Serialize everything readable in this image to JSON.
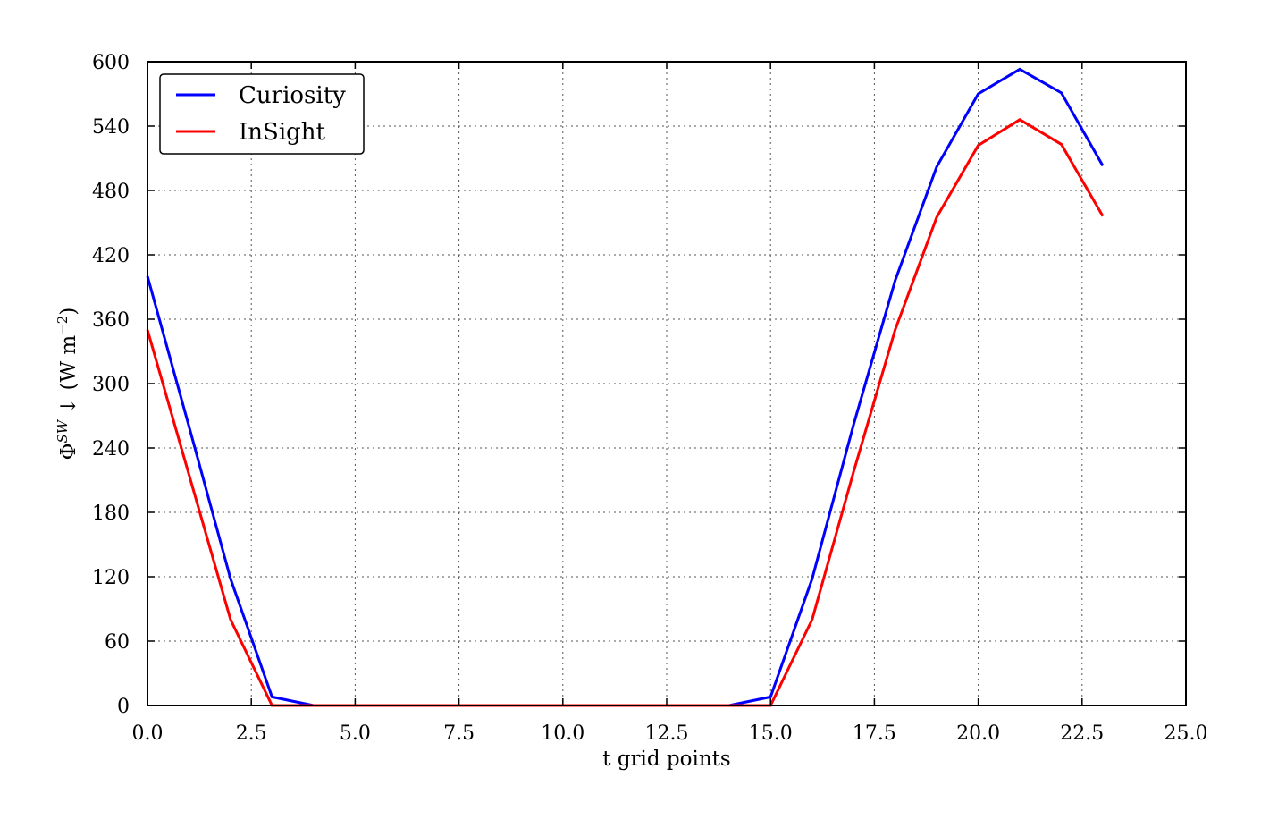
{
  "chart_data": {
    "type": "line",
    "title": "",
    "xlabel": "t grid points",
    "ylabel": {
      "prefix": "Φ",
      "superscript": "SW",
      "arrow": "↓",
      "unit_open": "(W m",
      "unit_exp": "−2",
      "unit_close": ")"
    },
    "xlim": [
      0,
      25
    ],
    "ylim": [
      0,
      600
    ],
    "x_ticks": [
      0,
      2.5,
      5,
      7.5,
      10,
      12.5,
      15,
      17.5,
      20,
      22.5,
      25
    ],
    "x_tick_labels": [
      "0.0",
      "2.5",
      "5.0",
      "7.5",
      "10.0",
      "12.5",
      "15.0",
      "17.5",
      "20.0",
      "22.5",
      "25.0"
    ],
    "y_ticks": [
      0,
      60,
      120,
      180,
      240,
      300,
      360,
      420,
      480,
      540,
      600
    ],
    "y_tick_labels": [
      "0",
      "60",
      "120",
      "180",
      "240",
      "300",
      "360",
      "420",
      "480",
      "540",
      "600"
    ],
    "grid": true,
    "legend_position": "top-left",
    "x": [
      0,
      1,
      2,
      3,
      4,
      5,
      6,
      7,
      8,
      9,
      10,
      11,
      12,
      13,
      14,
      15,
      16,
      17,
      18,
      19,
      20,
      21,
      22,
      23
    ],
    "series": [
      {
        "name": "Curiosity",
        "color": "#0000ff",
        "values": [
          400,
          260,
          118,
          8,
          0,
          0,
          0,
          0,
          0,
          0,
          0,
          0,
          0,
          0,
          0,
          8,
          118,
          262,
          396,
          502,
          570,
          593,
          571,
          503
        ]
      },
      {
        "name": "InSight",
        "color": "#ff0000",
        "values": [
          350,
          215,
          80,
          0,
          0,
          0,
          0,
          0,
          0,
          0,
          0,
          0,
          0,
          0,
          0,
          0,
          80,
          218,
          350,
          455,
          522,
          546,
          523,
          456
        ]
      }
    ]
  }
}
